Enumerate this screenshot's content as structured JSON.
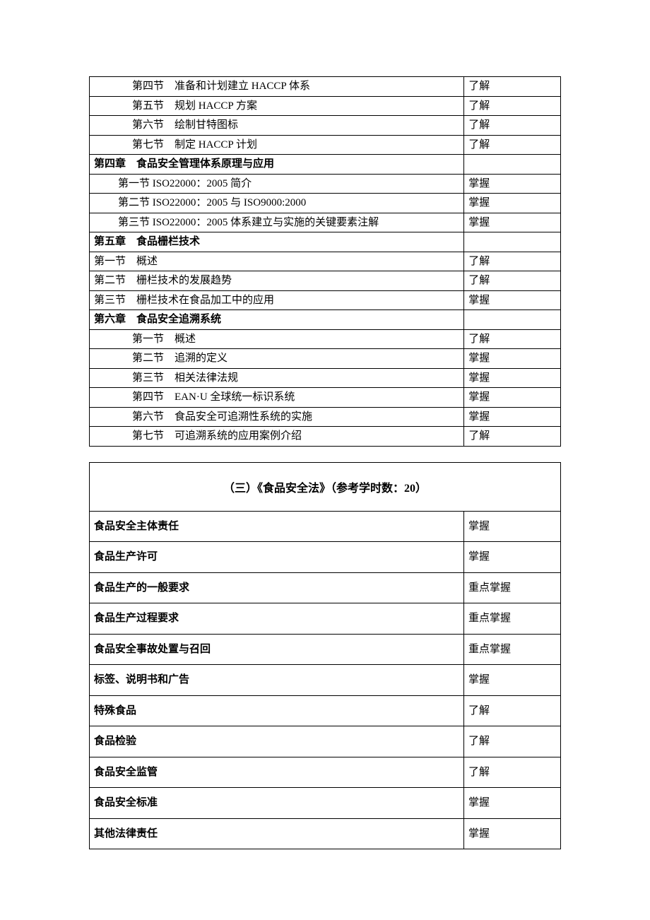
{
  "table1": {
    "columnWidths": [
      "79.5%",
      "20.5%"
    ],
    "rows": [
      {
        "label": "第四节 准备和计划建立 HACCP 体系",
        "level": "了解",
        "indent": 2,
        "bold": false
      },
      {
        "label": "第五节 规划 HACCP 方案",
        "level": "了解",
        "indent": 2,
        "bold": false
      },
      {
        "label": "第六节 绘制甘特图标",
        "level": "了解",
        "indent": 2,
        "bold": false
      },
      {
        "label": "第七节 制定 HACCP 计划",
        "level": "了解",
        "indent": 2,
        "bold": false
      },
      {
        "label": "第四章 食品安全管理体系原理与应用",
        "level": "",
        "indent": 0,
        "bold": true
      },
      {
        "label": "第一节 ISO22000：2005 简介",
        "level": "掌握",
        "indent": 1,
        "bold": false
      },
      {
        "label": "第二节 ISO22000：2005 与 ISO9000:2000",
        "level": "掌握",
        "indent": 1,
        "bold": false
      },
      {
        "label": "第三节 ISO22000：2005 体系建立与实施的关键要素注解",
        "level": "掌握",
        "indent": 1,
        "bold": false
      },
      {
        "label": "第五章 食品栅栏技术",
        "level": "",
        "indent": 0,
        "bold": true
      },
      {
        "label": "第一节 概述",
        "level": "了解",
        "indent": 0,
        "bold": false
      },
      {
        "label": "第二节 栅栏技术的发展趋势",
        "level": "了解",
        "indent": 0,
        "bold": false
      },
      {
        "label": "第三节 栅栏技术在食品加工中的应用",
        "level": "掌握",
        "indent": 0,
        "bold": false
      },
      {
        "label": "第六章 食品安全追溯系统",
        "level": "",
        "indent": 0,
        "bold": true
      },
      {
        "label": "第一节 概述",
        "level": "了解",
        "indent": 2,
        "bold": false
      },
      {
        "label": "第二节 追溯的定义",
        "level": "掌握",
        "indent": 2,
        "bold": false
      },
      {
        "label": "第三节 相关法律法规",
        "level": "掌握",
        "indent": 2,
        "bold": false
      },
      {
        "label": "第四节 EAN·U 全球统一标识系统",
        "level": "掌握",
        "indent": 2,
        "bold": false
      },
      {
        "label": "第六节 食品安全可追溯性系统的实施",
        "level": "掌握",
        "indent": 2,
        "bold": false
      },
      {
        "label": "第七节 可追溯系统的应用案例介绍",
        "level": "了解",
        "indent": 2,
        "bold": false
      }
    ]
  },
  "table2": {
    "title": "（三）《食品安全法》（参考学时数：20）",
    "columnWidths": [
      "79.5%",
      "20.5%"
    ],
    "rows": [
      {
        "label": "食品安全主体责任",
        "level": "掌握",
        "bold": true
      },
      {
        "label": "食品生产许可",
        "level": "掌握",
        "bold": true
      },
      {
        "label": "食品生产的一般要求",
        "level": "重点掌握",
        "bold": true
      },
      {
        "label": "食品生产过程要求",
        "level": "重点掌握",
        "bold": true
      },
      {
        "label": "食品安全事故处置与召回",
        "level": "重点掌握",
        "bold": true
      },
      {
        "label": "标签、说明书和广告",
        "level": "掌握",
        "bold": true
      },
      {
        "label": "特殊食品",
        "level": "了解",
        "bold": true
      },
      {
        "label": "食品检验",
        "level": "了解",
        "bold": true
      },
      {
        "label": "食品安全监管",
        "level": "了解",
        "bold": true
      },
      {
        "label": "食品安全标准",
        "level": "掌握",
        "bold": true
      },
      {
        "label": "其他法律责任",
        "level": "掌握",
        "bold": true
      }
    ]
  },
  "style": {
    "borderColor": "#000000",
    "background": "#ffffff",
    "textColor": "#000000",
    "fontSize": 15,
    "rowPadding1": 2,
    "rowPadding2": 10
  }
}
